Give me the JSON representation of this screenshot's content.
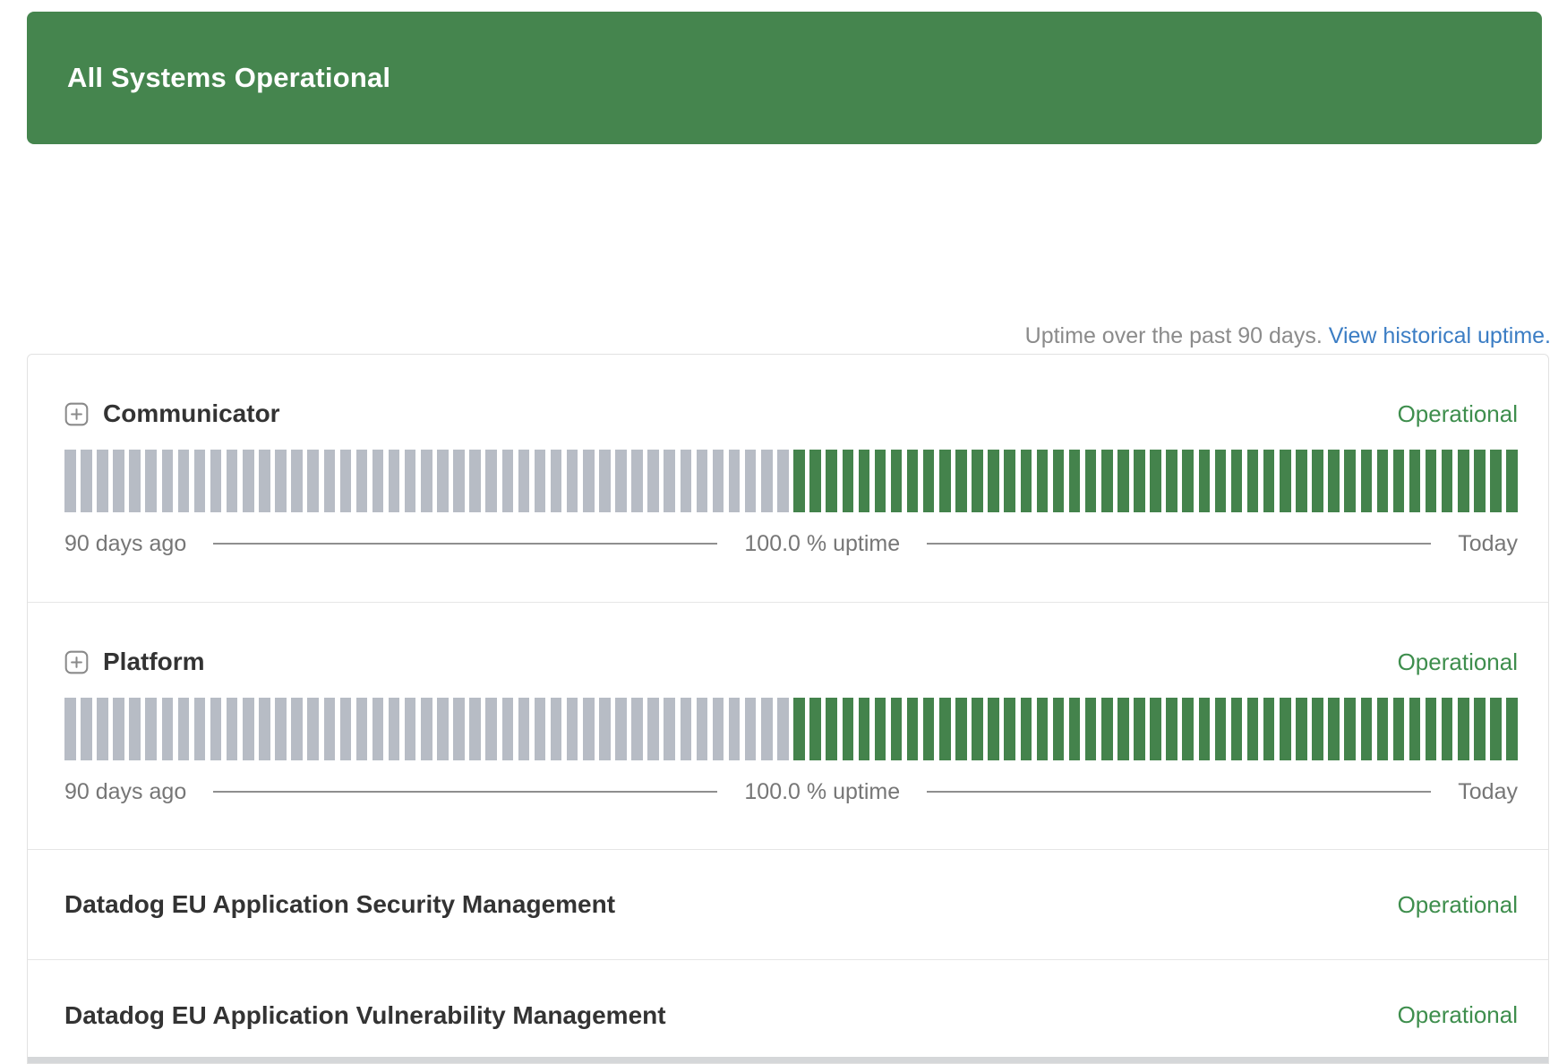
{
  "banner": {
    "label": "All Systems Operational"
  },
  "uptime_note": {
    "text": "Uptime over the past 90 days.",
    "link_label": "View historical uptime."
  },
  "legend": {
    "start": "90 days ago",
    "middle": "100.0 % uptime",
    "end": "Today"
  },
  "components": [
    {
      "name": "Communicator",
      "status": "Operational",
      "expandable": true,
      "uptime_bars": {
        "total": 90,
        "older_gray": 45,
        "recent_green": 45
      }
    },
    {
      "name": "Platform",
      "status": "Operational",
      "expandable": true,
      "uptime_bars": {
        "total": 90,
        "older_gray": 45,
        "recent_green": 45
      }
    },
    {
      "name": "Datadog EU Application Security Management",
      "status": "Operational",
      "expandable": false
    },
    {
      "name": "Datadog EU Application Vulnerability Management",
      "status": "Operational",
      "expandable": false
    }
  ],
  "colors": {
    "banner_green": "#45854e",
    "bar_gray": "#b7bcc5",
    "bar_green": "#44834c",
    "status_green": "#3e8e4d",
    "link_blue": "#3b7dc4"
  }
}
